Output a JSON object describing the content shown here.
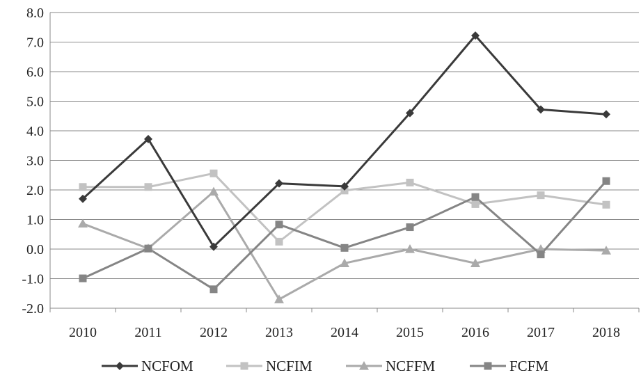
{
  "chart_data": {
    "type": "line",
    "title": "",
    "xlabel": "",
    "ylabel": "",
    "categories": [
      "2010",
      "2011",
      "2012",
      "2013",
      "2014",
      "2015",
      "2016",
      "2017",
      "2018"
    ],
    "ylim": [
      -2.0,
      8.0
    ],
    "ytick_labels": [
      "-2.0",
      "-1.0",
      "0.0",
      "1.0",
      "2.0",
      "3.0",
      "4.0",
      "5.0",
      "6.0",
      "7.0",
      "8.0"
    ],
    "grid": true,
    "legend_position": "bottom",
    "series": [
      {
        "name": "NCFOM",
        "marker": "diamond",
        "color": "#3a3a3a",
        "values": [
          1.7,
          3.72,
          0.08,
          2.22,
          2.12,
          4.6,
          7.22,
          4.72,
          4.56
        ]
      },
      {
        "name": "NCFIM",
        "marker": "square",
        "color": "#c2c2c2",
        "values": [
          2.1,
          2.1,
          2.56,
          0.25,
          1.98,
          2.25,
          1.52,
          1.82,
          1.5
        ]
      },
      {
        "name": "NCFFM",
        "marker": "triangle",
        "color": "#aaaaaa",
        "values": [
          0.86,
          0.02,
          1.94,
          -1.7,
          -0.48,
          0.0,
          -0.48,
          0.0,
          -0.05
        ]
      },
      {
        "name": "FCFM",
        "marker": "square",
        "color": "#858585",
        "values": [
          -0.99,
          0.02,
          -1.36,
          0.83,
          0.04,
          0.74,
          1.76,
          -0.18,
          2.3
        ]
      }
    ]
  }
}
